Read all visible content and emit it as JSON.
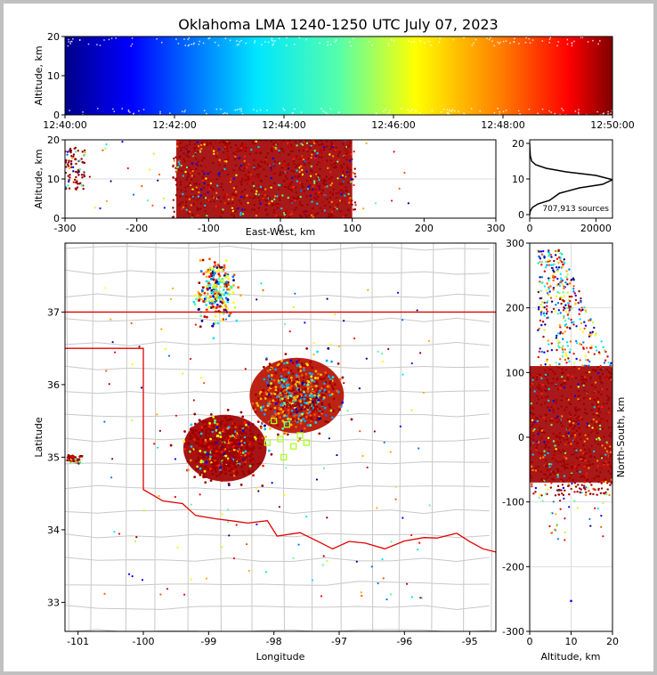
{
  "chart_data": {
    "title": "Oklahoma LMA 1240-1250 UTC July 07, 2023",
    "panels": [
      {
        "id": "time-height",
        "type": "scatter",
        "xlabel": "",
        "ylabel": "Altitude, km",
        "xticks": [
          "12:40:00",
          "12:42:00",
          "12:44:00",
          "12:46:00",
          "12:48:00",
          "12:50:00"
        ],
        "xlim_minutes": [
          0,
          10
        ],
        "yticks": [
          "0",
          "10",
          "20"
        ],
        "ylim": [
          0,
          20
        ],
        "colormap": "jet by time",
        "note": "dense band of sources 0-20 km across the full 10 minutes, colored from dark blue (12:40) to dark red (12:50)"
      },
      {
        "id": "ew-altitude",
        "type": "scatter",
        "xlabel": "East-West, km",
        "ylabel": "Altitude, km",
        "xticks": [
          "-300",
          "-200",
          "-100",
          "0",
          "100",
          "200",
          "300"
        ],
        "xlim": [
          -300,
          300
        ],
        "yticks": [
          "0",
          "10",
          "20"
        ],
        "ylim": [
          0,
          20
        ],
        "clusters": [
          {
            "x_range": [
              -300,
              -275
            ],
            "alt_range": [
              7,
              18
            ]
          },
          {
            "x_range": [
              -150,
              105
            ],
            "alt_range": [
              0,
              20
            ]
          }
        ]
      },
      {
        "id": "altitude-histogram",
        "type": "line",
        "xticks": [
          "0",
          "20000"
        ],
        "xlim": [
          0,
          25000
        ],
        "yticks": [
          "0",
          "10",
          "20"
        ],
        "ylim": [
          0,
          20
        ],
        "annotation": "707,913 sources",
        "x": [
          0,
          200,
          800,
          2500,
          6000,
          7500,
          9000,
          15000,
          22000,
          25000,
          20000,
          11000,
          5000,
          1800,
          600,
          200,
          50,
          0
        ],
        "y": [
          0,
          1,
          2,
          3,
          4,
          5,
          6,
          7.5,
          8.5,
          9.8,
          11,
          12,
          13,
          14,
          15,
          16.5,
          18.5,
          20
        ]
      },
      {
        "id": "plan-view",
        "type": "scatter",
        "xlabel": "Longitude",
        "ylabel": "Latitude",
        "xticks": [
          "-101",
          "-100",
          "-99",
          "-98",
          "-97",
          "-96",
          "-95"
        ],
        "xlim": [
          -101.2,
          -94.6
        ],
        "yticks": [
          "33",
          "34",
          "35",
          "36",
          "37"
        ],
        "ylim": [
          32.6,
          37.95
        ],
        "clusters": [
          {
            "lon_range": [
              -99.5,
              -98.0
            ],
            "lat_range": [
              34.55,
              35.7
            ]
          },
          {
            "lon_range": [
              -98.5,
              -96.8
            ],
            "lat_range": [
              35.2,
              36.5
            ]
          },
          {
            "lon_range": [
              -99.3,
              -98.5
            ],
            "lat_range": [
              36.7,
              37.9
            ]
          },
          {
            "lon_range": [
              -101.2,
              -100.9
            ],
            "lat_range": [
              34.9,
              35.05
            ]
          }
        ]
      },
      {
        "id": "altitude-ns",
        "type": "scatter",
        "xlabel": "Altitude, km",
        "ylabel": "North-South, km",
        "xticks": [
          "0",
          "10",
          "20"
        ],
        "xlim": [
          0,
          20
        ],
        "yticks": [
          "-300",
          "-200",
          "-100",
          "0",
          "100",
          "200",
          "300"
        ],
        "ylim": [
          -300,
          300
        ],
        "clusters": [
          {
            "ns_range": [
              -100,
              300
            ],
            "alt_range": [
              0,
              20
            ]
          }
        ]
      }
    ]
  }
}
